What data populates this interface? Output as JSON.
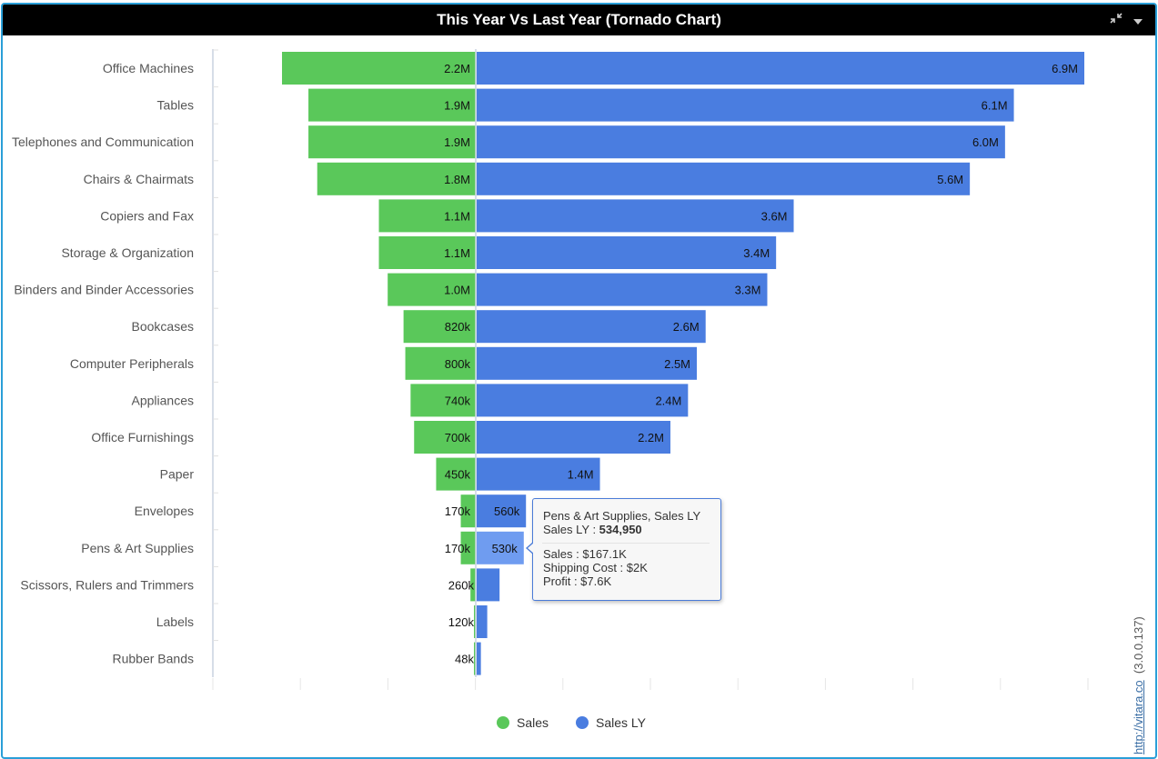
{
  "window": {
    "title": "This Year Vs Last Year (Tornado Chart)",
    "icons": [
      "collapse-icon",
      "dropdown-caret-icon"
    ]
  },
  "colors": {
    "sales": "#5ac85a",
    "sales_ly": "#4a7de0",
    "sales_ly_hover": "#6f9cf0",
    "title_bar": "#000000",
    "border": "#2a9fd8"
  },
  "chart_data": {
    "type": "bar",
    "orientation": "horizontal-tornado",
    "categories": [
      "Office Machines",
      "Tables",
      "Telephones and Communication",
      "Chairs & Chairmats",
      "Copiers and Fax",
      "Storage & Organization",
      "Binders and Binder Accessories",
      "Bookcases",
      "Computer Peripherals",
      "Appliances",
      "Office Furnishings",
      "Paper",
      "Envelopes",
      "Pens & Art Supplies",
      "Scissors, Rulers and Trimmers",
      "Labels",
      "Rubber Bands"
    ],
    "series": [
      {
        "name": "Sales",
        "values": [
          2200000,
          1900000,
          1900000,
          1800000,
          1100000,
          1100000,
          1000000,
          820000,
          800000,
          740000,
          700000,
          450000,
          170000,
          170000,
          60000,
          20000,
          10000
        ],
        "labels": [
          "2.2M",
          "1.9M",
          "1.9M",
          "1.8M",
          "1.1M",
          "1.1M",
          "1.0M",
          "820k",
          "800k",
          "740k",
          "700k",
          "450k",
          "170k",
          "170k",
          "",
          "",
          ""
        ]
      },
      {
        "name": "Sales LY",
        "values": [
          6900000,
          6100000,
          6000000,
          5600000,
          3600000,
          3400000,
          3300000,
          2600000,
          2500000,
          2400000,
          2200000,
          1400000,
          560000,
          534950,
          260000,
          120000,
          48000
        ],
        "labels": [
          "6.9M",
          "6.1M",
          "6.0M",
          "5.6M",
          "3.6M",
          "3.4M",
          "3.3M",
          "2.6M",
          "2.5M",
          "2.4M",
          "2.2M",
          "1.4M",
          "560k",
          "530k",
          "260k",
          "120k",
          "48k"
        ]
      }
    ],
    "legend": [
      "Sales",
      "Sales LY"
    ],
    "legend_position": "bottom-center",
    "grid": false
  },
  "tooltip": {
    "header": "Pens & Art Supplies, Sales LY",
    "main_label": "Sales LY : ",
    "main_value": "534,950",
    "lines": [
      "Sales : $167.1K",
      "Shipping Cost : $2K",
      "Profit : $7.6K"
    ]
  },
  "watermark": {
    "link": "http://vitara.co",
    "version": "(3.0.0.137)"
  }
}
